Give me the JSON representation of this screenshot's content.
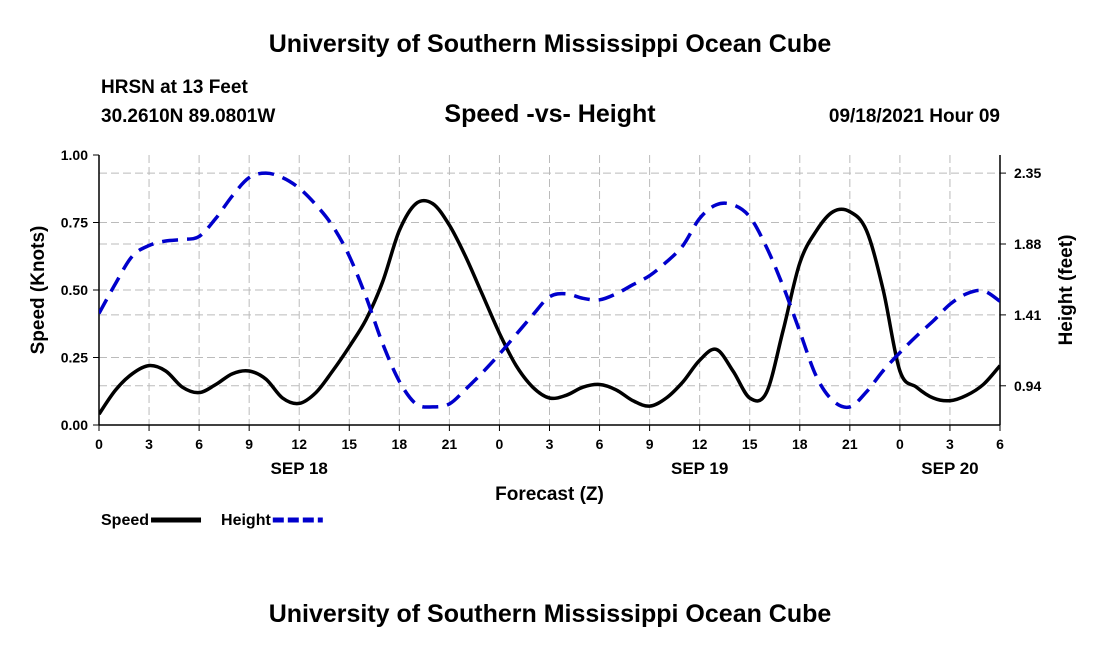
{
  "header": {
    "title": "University of Southern Mississippi Ocean Cube",
    "station": "HRSN at 13 Feet",
    "coords": "30.2610N  89.0801W",
    "datetime": "09/18/2021 Hour 09"
  },
  "footer": {
    "title": "University of Southern Mississippi Ocean Cube"
  },
  "chart_data": {
    "type": "line",
    "title": "Speed -vs- Height",
    "xlabel": "Forecast (Z)",
    "ylabel": "Speed (Knots)",
    "y2label": "Height (feet)",
    "x_unit": "hours from 00Z Sep 18",
    "xlim": [
      0,
      54
    ],
    "ylim": [
      0,
      1.0
    ],
    "y2lim": [
      0.68,
      2.47
    ],
    "x_ticks": [
      0,
      3,
      6,
      9,
      12,
      15,
      18,
      21,
      24,
      27,
      30,
      33,
      36,
      39,
      42,
      45,
      48,
      51,
      54
    ],
    "x_tick_labels": [
      "0",
      "3",
      "6",
      "9",
      "12",
      "15",
      "18",
      "21",
      "0",
      "3",
      "6",
      "9",
      "12",
      "15",
      "18",
      "21",
      "0",
      "3",
      "6"
    ],
    "y_ticks": [
      0,
      0.25,
      0.5,
      0.75,
      1.0
    ],
    "y_tick_labels": [
      "0.00",
      "0.25",
      "0.50",
      "0.75",
      "1.00"
    ],
    "y2_ticks": [
      0.94,
      1.41,
      1.88,
      2.35
    ],
    "y2_tick_labels": [
      "0.94",
      "1.41",
      "1.88",
      "2.35"
    ],
    "date_labels": [
      {
        "x": 12,
        "label": "SEP 18"
      },
      {
        "x": 36,
        "label": "SEP 19"
      },
      {
        "x": 51,
        "label": "SEP 20"
      }
    ],
    "grid": true,
    "legend_position": "bottom-left",
    "series": [
      {
        "name": "Speed",
        "axis": "left",
        "color": "#000000",
        "dash": "solid",
        "x": [
          0,
          1,
          2,
          3,
          4,
          5,
          6,
          7,
          8,
          9,
          10,
          11,
          12,
          13,
          14,
          15,
          16,
          17,
          18,
          19,
          20,
          21,
          22,
          23,
          24,
          25,
          26,
          27,
          28,
          29,
          30,
          31,
          32,
          33,
          34,
          35,
          36,
          37,
          38,
          39,
          40,
          41,
          42,
          43,
          44,
          45,
          46,
          47,
          48,
          49,
          50,
          51,
          52,
          53,
          54
        ],
        "values": [
          0.04,
          0.13,
          0.19,
          0.22,
          0.2,
          0.14,
          0.12,
          0.15,
          0.19,
          0.2,
          0.17,
          0.1,
          0.08,
          0.12,
          0.2,
          0.29,
          0.39,
          0.53,
          0.72,
          0.82,
          0.82,
          0.74,
          0.62,
          0.48,
          0.34,
          0.22,
          0.14,
          0.1,
          0.11,
          0.14,
          0.15,
          0.13,
          0.09,
          0.07,
          0.1,
          0.16,
          0.24,
          0.28,
          0.2,
          0.1,
          0.12,
          0.35,
          0.6,
          0.72,
          0.79,
          0.79,
          0.72,
          0.5,
          0.2,
          0.14,
          0.1,
          0.09,
          0.11,
          0.15,
          0.22
        ]
      },
      {
        "name": "Height",
        "axis": "right",
        "color": "#0000cc",
        "dash": "dashed",
        "x": [
          0,
          1,
          2,
          3,
          4,
          5,
          6,
          7,
          8,
          9,
          10,
          11,
          12,
          13,
          14,
          15,
          16,
          17,
          18,
          19,
          20,
          21,
          22,
          23,
          24,
          25,
          26,
          27,
          28,
          29,
          30,
          31,
          32,
          33,
          34,
          35,
          36,
          37,
          38,
          39,
          40,
          41,
          42,
          43,
          44,
          45,
          46,
          47,
          48,
          49,
          50,
          51,
          52,
          53,
          54
        ],
        "values": [
          1.42,
          1.62,
          1.8,
          1.87,
          1.9,
          1.91,
          1.93,
          2.05,
          2.2,
          2.32,
          2.35,
          2.32,
          2.25,
          2.14,
          2.0,
          1.8,
          1.53,
          1.22,
          0.97,
          0.82,
          0.8,
          0.82,
          0.92,
          1.03,
          1.15,
          1.28,
          1.41,
          1.53,
          1.55,
          1.52,
          1.51,
          1.55,
          1.61,
          1.67,
          1.76,
          1.87,
          2.05,
          2.14,
          2.14,
          2.06,
          1.86,
          1.6,
          1.3,
          1.0,
          0.84,
          0.8,
          0.9,
          1.04,
          1.16,
          1.27,
          1.37,
          1.48,
          1.55,
          1.57,
          1.5
        ]
      }
    ]
  }
}
